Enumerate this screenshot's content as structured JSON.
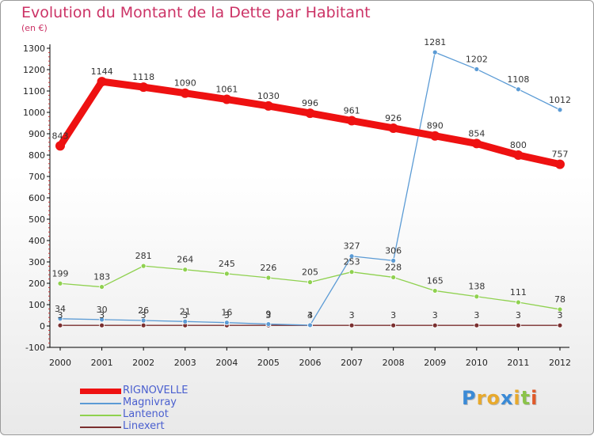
{
  "title": "Evolution du Montant de la Dette par Habitant",
  "subtitle": "(en €)",
  "brand": {
    "text": "Proxiti",
    "letters": [
      {
        "ch": "P",
        "color": "#3a8ad6"
      },
      {
        "ch": "r",
        "color": "#e8a92c"
      },
      {
        "ch": "o",
        "color": "#e8a92c"
      },
      {
        "ch": "x",
        "color": "#3a8ad6"
      },
      {
        "ch": "i",
        "color": "#e8a92c"
      },
      {
        "ch": "t",
        "color": "#8bc34a"
      },
      {
        "ch": "i",
        "color": "#e05a2a"
      }
    ]
  },
  "chart_data": {
    "type": "line",
    "title": "Evolution du Montant de la Dette par Habitant",
    "subtitle": "(en €)",
    "x": [
      "2000",
      "2001",
      "2002",
      "2003",
      "2004",
      "2005",
      "2006",
      "2007",
      "2008",
      "2009",
      "2010",
      "2011",
      "2012"
    ],
    "ylim": [
      -100,
      1300
    ],
    "yticks": [
      -100,
      0,
      100,
      200,
      300,
      400,
      500,
      600,
      700,
      800,
      900,
      1000,
      1100,
      1200,
      1300
    ],
    "grid": false,
    "legend_position": "bottom-left",
    "series": [
      {
        "name": "RIGNOVELLE",
        "color": "#ee1111",
        "values": [
          843,
          1144,
          1118,
          1090,
          1061,
          1030,
          996,
          961,
          926,
          890,
          854,
          800,
          757
        ],
        "labels": [
          "843",
          "1144",
          "1118",
          "1090",
          "1061",
          "1030",
          "996",
          "961",
          "926",
          "890",
          "854",
          "800",
          "757"
        ]
      },
      {
        "name": "Magnivray",
        "color": "#5b9bd5",
        "values": [
          34,
          30,
          26,
          21,
          16,
          9,
          4,
          327,
          306,
          1281,
          1202,
          1108,
          1012
        ],
        "labels": [
          "34",
          "30",
          "26",
          "21",
          "16",
          "9",
          "4",
          "327",
          "306",
          "1281",
          "1202",
          "1108",
          "1012"
        ]
      },
      {
        "name": "Lantenot",
        "color": "#8fd14f",
        "values": [
          199,
          183,
          281,
          264,
          245,
          226,
          205,
          253,
          228,
          165,
          138,
          111,
          78
        ],
        "labels": [
          "199",
          "183",
          "281",
          "264",
          "245",
          "226",
          "205",
          "253",
          "228",
          "165",
          "138",
          "111",
          "78"
        ]
      },
      {
        "name": "Linexert",
        "color": "#7a2f2f",
        "values": [
          3,
          3,
          3,
          3,
          3,
          3,
          3,
          3,
          3,
          3,
          3,
          3,
          3
        ],
        "labels": [
          "3",
          "3",
          "3",
          "3",
          "3",
          "3",
          "3",
          "3",
          "3",
          "3",
          "3",
          "3",
          "3"
        ]
      }
    ]
  }
}
